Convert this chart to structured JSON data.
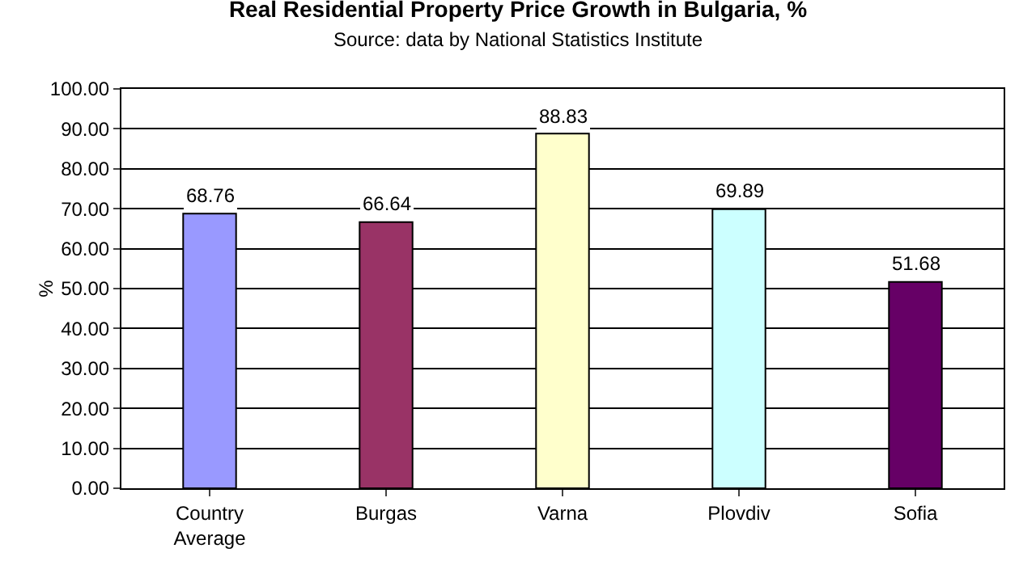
{
  "chart_data": {
    "type": "bar",
    "title": "Real Residential Property Price Growth in Bulgaria, %",
    "subtitle": "Source: data by National Statistics Institute",
    "ylabel": "%",
    "categories": [
      "Country Average",
      "Burgas",
      "Varna",
      "Plovdiv",
      "Sofia"
    ],
    "values": [
      68.76,
      66.64,
      88.83,
      69.89,
      51.68
    ],
    "colors": [
      "#9999ff",
      "#993366",
      "#ffffcc",
      "#ccffff",
      "#660066"
    ],
    "ylim": [
      0,
      100
    ],
    "yticks": [
      {
        "value": 0,
        "label": "0.00"
      },
      {
        "value": 10,
        "label": "10.00"
      },
      {
        "value": 20,
        "label": "20.00"
      },
      {
        "value": 30,
        "label": "30.00"
      },
      {
        "value": 40,
        "label": "40.00"
      },
      {
        "value": 50,
        "label": "50.00"
      },
      {
        "value": 60,
        "label": "60.00"
      },
      {
        "value": 70,
        "label": "70.00"
      },
      {
        "value": 80,
        "label": "80.00"
      },
      {
        "value": 90,
        "label": "90.00"
      },
      {
        "value": 100,
        "label": "100.00"
      }
    ],
    "grid": true,
    "data_labels": true
  }
}
